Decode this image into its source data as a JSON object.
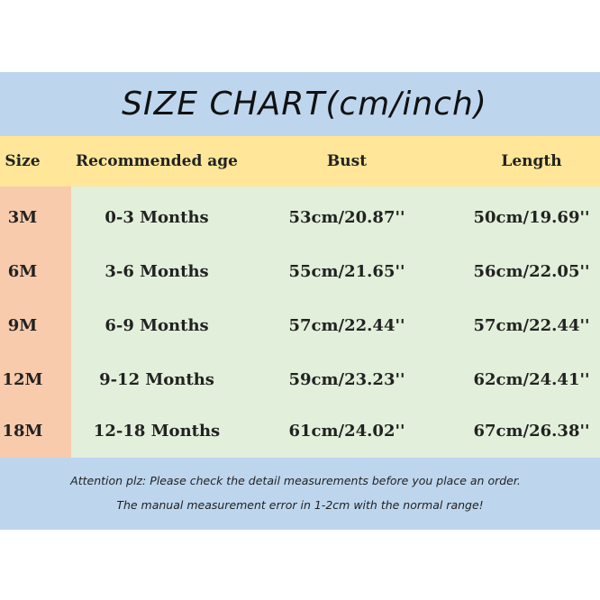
{
  "title": "SIZE CHART(cm/inch)",
  "headers": {
    "size": "Size",
    "age": "Recommended age",
    "bust": "Bust",
    "length": "Length"
  },
  "rows": [
    {
      "size": "3M",
      "age": "0-3 Months",
      "bust": "53cm/20.87''",
      "length": "50cm/19.69''"
    },
    {
      "size": "6M",
      "age": "3-6 Months",
      "bust": "55cm/21.65''",
      "length": "56cm/22.05''"
    },
    {
      "size": "9M",
      "age": "6-9 Months",
      "bust": "57cm/22.44''",
      "length": "57cm/22.44''"
    },
    {
      "size": "12M",
      "age": "9-12 Months",
      "bust": "59cm/23.23''",
      "length": "62cm/24.41''"
    },
    {
      "size": "18M",
      "age": "12-18 Months",
      "bust": "61cm/24.02''",
      "length": "67cm/26.38''"
    }
  ],
  "notes": {
    "line1": "Attention plz:  Please check the detail measurements before you place an order.",
    "line2": "The manual measurement error in 1-2cm with the normal range!"
  },
  "colors": {
    "title_band": "#bdd6ee",
    "header_band": "#ffe699",
    "size_column": "#f8cbad",
    "body_area": "#e2efda",
    "note_band": "#bdd6ee"
  }
}
